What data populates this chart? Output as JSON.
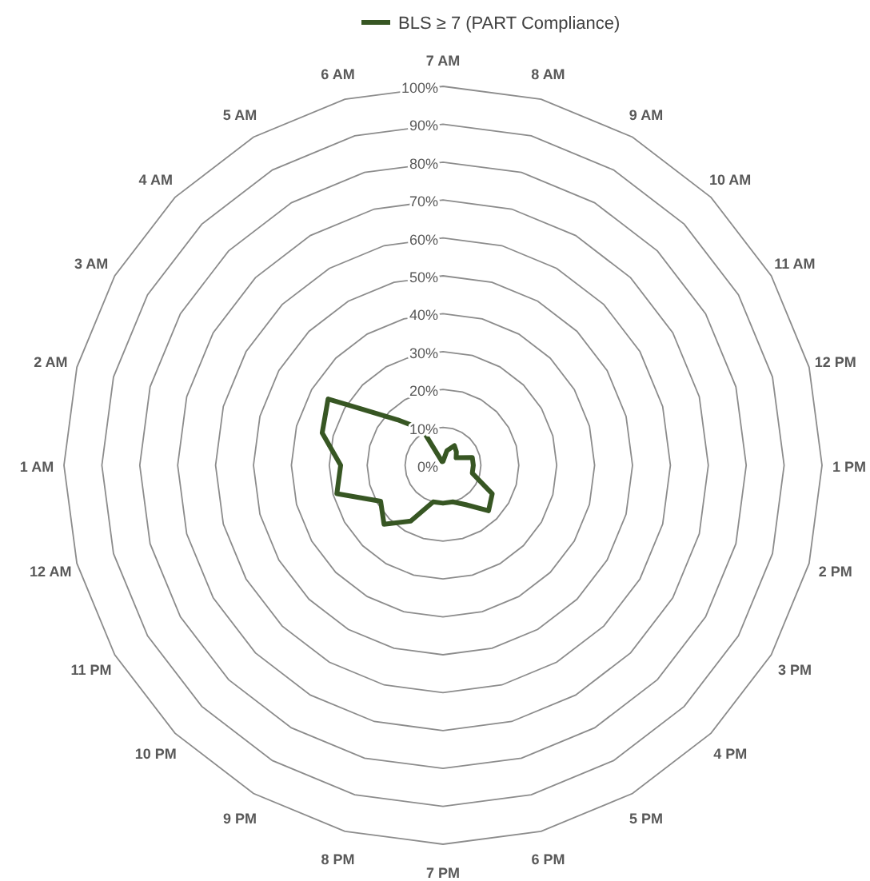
{
  "chart_data": {
    "type": "radar",
    "categories": [
      "7 AM",
      "8 AM",
      "9 AM",
      "10 AM",
      "11 AM",
      "12 PM",
      "1 PM",
      "2 PM",
      "3 PM",
      "4 PM",
      "5 PM",
      "6 PM",
      "7 PM",
      "8 PM",
      "9 PM",
      "10 PM",
      "11 PM",
      "12 AM",
      "1 AM",
      "2 AM",
      "3 AM",
      "4 AM",
      "5 AM",
      "6 AM"
    ],
    "series": [
      {
        "name": "BLS ≥ 7 (PART Compliance)",
        "color": "#375623",
        "values": [
          1,
          4,
          6,
          5,
          4,
          8,
          8,
          8,
          15,
          17,
          12,
          10,
          10,
          10,
          17,
          22,
          19,
          29,
          27,
          33,
          35,
          17,
          11,
          1
        ]
      }
    ],
    "ylim": [
      0,
      100
    ],
    "yticks": [
      {
        "value": 0,
        "label": "0%"
      },
      {
        "value": 10,
        "label": "10%"
      },
      {
        "value": 20,
        "label": "20%"
      },
      {
        "value": 30,
        "label": "30%"
      },
      {
        "value": 40,
        "label": "40%"
      },
      {
        "value": 50,
        "label": "50%"
      },
      {
        "value": 60,
        "label": "60%"
      },
      {
        "value": 70,
        "label": "70%"
      },
      {
        "value": 80,
        "label": "80%"
      },
      {
        "value": 90,
        "label": "90%"
      },
      {
        "value": 100,
        "label": "100%"
      }
    ],
    "grid": true,
    "legend": "top",
    "marker": "none",
    "line_style": "solid"
  }
}
